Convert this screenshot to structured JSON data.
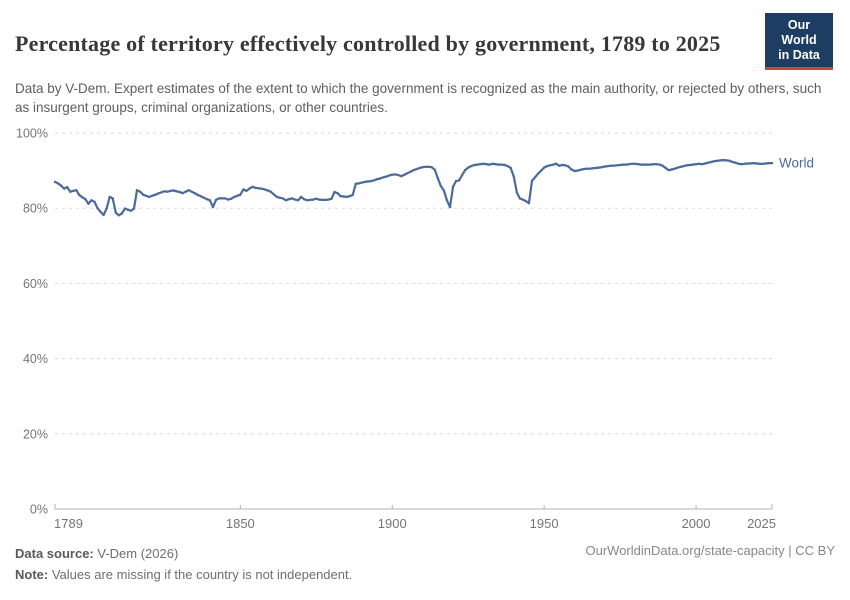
{
  "header": {
    "title": "Percentage of territory effectively controlled by government, 1789 to 2025",
    "subtitle": "Data by V-Dem. Expert estimates of the extent to which the government is recognized as the main authority, or rejected by others, such as insurgent groups, criminal organizations, or other countries.",
    "logo": {
      "line1": "Our World",
      "line2": "in Data",
      "bg": "#1d3d63",
      "stripe": "#dc3e38"
    }
  },
  "chart_data": {
    "type": "line",
    "title": "Percentage of territory effectively controlled by government, 1789 to 2025",
    "xlabel": "",
    "ylabel": "",
    "xlim": [
      1789,
      2025
    ],
    "ylim": [
      0,
      100
    ],
    "x_ticks": [
      1789,
      1850,
      1900,
      1950,
      2000,
      2025
    ],
    "y_ticks": [
      0,
      20,
      40,
      60,
      80,
      100
    ],
    "y_tick_suffix": "%",
    "grid": "horizontal-dashed",
    "legend_position": "end-of-line-label",
    "colors": {
      "grid": "#d9d9d9",
      "axis": "#b0b0b0",
      "tick_text": "#757575"
    },
    "x_start_year": 1789,
    "series": [
      {
        "name": "World",
        "color": "#4c6a9c",
        "values": [
          87.0,
          86.6,
          86.0,
          85.2,
          85.6,
          84.4,
          84.6,
          84.8,
          83.5,
          82.9,
          82.4,
          81.2,
          82.1,
          81.7,
          80.0,
          79.0,
          78.2,
          79.9,
          83.0,
          82.6,
          78.8,
          78.1,
          78.6,
          79.9,
          79.6,
          79.3,
          79.9,
          84.8,
          84.4,
          83.6,
          83.3,
          83.0,
          83.3,
          83.6,
          83.9,
          84.2,
          84.5,
          84.4,
          84.6,
          84.7,
          84.5,
          84.3,
          84.0,
          84.4,
          84.8,
          84.4,
          84.0,
          83.5,
          83.2,
          82.8,
          82.4,
          82.1,
          80.3,
          82.2,
          82.6,
          82.6,
          82.6,
          82.3,
          82.5,
          83.0,
          83.3,
          83.6,
          85.0,
          84.6,
          85.2,
          85.7,
          85.4,
          85.3,
          85.2,
          85.0,
          84.7,
          84.4,
          83.7,
          83.0,
          82.8,
          82.6,
          82.1,
          82.4,
          82.6,
          82.3,
          82.1,
          83.0,
          82.4,
          82.1,
          82.2,
          82.3,
          82.5,
          82.3,
          82.2,
          82.2,
          82.3,
          82.5,
          84.3,
          84.0,
          83.2,
          83.1,
          83.0,
          83.2,
          83.5,
          86.5,
          86.6,
          86.8,
          87.0,
          87.1,
          87.2,
          87.4,
          87.7,
          87.9,
          88.2,
          88.4,
          88.7,
          88.9,
          89.0,
          88.8,
          88.5,
          88.9,
          89.3,
          89.7,
          90.1,
          90.4,
          90.7,
          90.9,
          91.0,
          91.0,
          90.9,
          90.2,
          88.0,
          85.9,
          84.7,
          82.1,
          80.3,
          85.7,
          87.2,
          87.4,
          88.8,
          90.1,
          90.8,
          91.2,
          91.5,
          91.6,
          91.7,
          91.8,
          91.7,
          91.6,
          91.8,
          91.7,
          91.6,
          91.6,
          91.5,
          91.2,
          90.7,
          88.4,
          84.2,
          82.6,
          82.3,
          81.9,
          81.3,
          87.3,
          88.2,
          89.2,
          90.0,
          90.8,
          91.2,
          91.4,
          91.6,
          91.8,
          91.3,
          91.5,
          91.4,
          91.1,
          90.3,
          89.9,
          90.0,
          90.2,
          90.4,
          90.5,
          90.5,
          90.6,
          90.7,
          90.8,
          90.9,
          91.1,
          91.2,
          91.3,
          91.3,
          91.4,
          91.5,
          91.6,
          91.6,
          91.7,
          91.8,
          91.8,
          91.7,
          91.6,
          91.6,
          91.6,
          91.6,
          91.7,
          91.7,
          91.6,
          91.3,
          90.7,
          90.1,
          90.3,
          90.5,
          90.8,
          91.0,
          91.2,
          91.4,
          91.5,
          91.6,
          91.7,
          91.8,
          91.7,
          91.9,
          92.1,
          92.3,
          92.5,
          92.6,
          92.7,
          92.8,
          92.7,
          92.6,
          92.3,
          92.1,
          91.8,
          91.7,
          91.8,
          91.9,
          91.9,
          92.0,
          91.9,
          91.8,
          91.8,
          91.9,
          92.0,
          92.0
        ]
      }
    ]
  },
  "footer": {
    "source_label": "Data source:",
    "source_value": " V-Dem (2026)",
    "note_label": "Note:",
    "note_value": " Values are missing if the country is not independent.",
    "link": "OurWorldinData.org/state-capacity | CC BY"
  }
}
